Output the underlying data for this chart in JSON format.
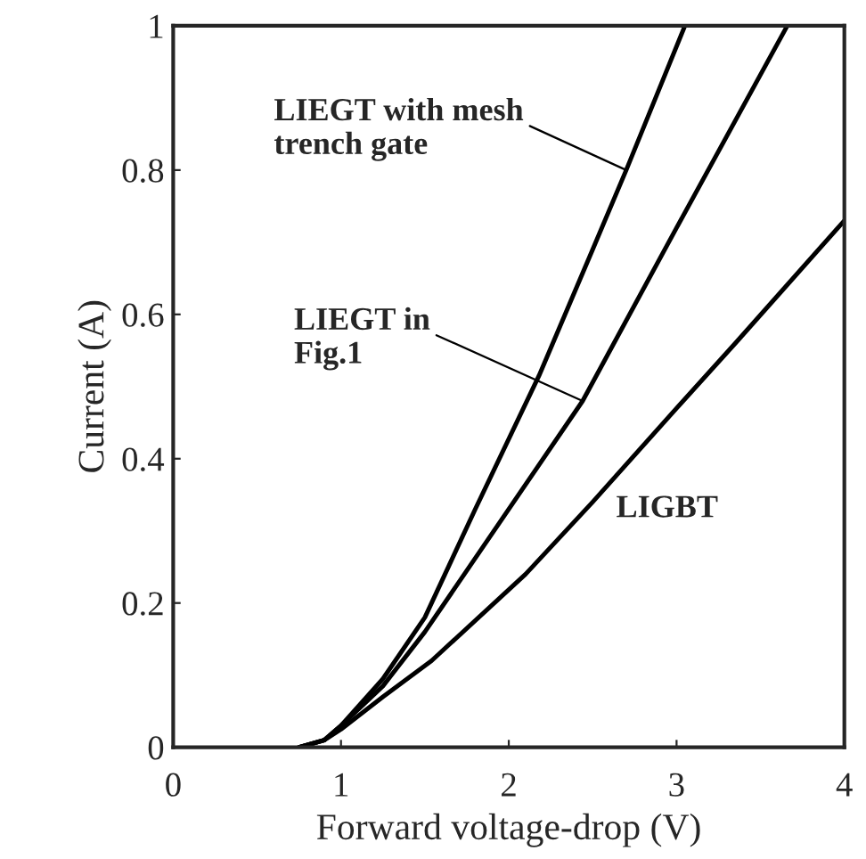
{
  "chart_data": {
    "type": "line",
    "xlabel": "Forward voltage-drop (V)",
    "ylabel": "Current (A)",
    "xlim": [
      0,
      4
    ],
    "ylim": [
      0,
      1
    ],
    "xticks": [
      0,
      1,
      2,
      3,
      4
    ],
    "yticks": [
      0,
      0.2,
      0.4,
      0.6,
      0.8,
      1
    ],
    "grid": false,
    "legend": false,
    "series": [
      {
        "color": "#000000",
        "x": [
          0.75,
          0.9,
          1.0,
          1.25,
          1.5,
          1.8,
          2.18,
          2.5,
          2.7,
          3.05
        ],
        "values": [
          0,
          0.01,
          0.03,
          0.095,
          0.18,
          0.33,
          0.515,
          0.69,
          0.8,
          1
        ]
      },
      {
        "color": "#000000",
        "x": [
          0.75,
          0.9,
          1.0,
          1.25,
          1.5,
          2.0,
          2.44,
          3.0,
          3.66
        ],
        "values": [
          0,
          0.01,
          0.03,
          0.085,
          0.16,
          0.33,
          0.48,
          0.72,
          1
        ]
      },
      {
        "color": "#000000",
        "x": [
          0.75,
          0.9,
          1.0,
          1.25,
          1.54,
          2.1,
          2.5,
          3.0,
          3.35,
          4.0
        ],
        "values": [
          0,
          0.01,
          0.025,
          0.07,
          0.12,
          0.24,
          0.34,
          0.47,
          0.56,
          0.73
        ]
      }
    ],
    "annotations": [
      {
        "text": "LIEGT with mesh\ntrench gate",
        "x": 2.7,
        "y": 0.8
      },
      {
        "text": "LIEGT in\nFig.1",
        "x": 2.44,
        "y": 0.48
      },
      "LIGBT"
    ]
  }
}
